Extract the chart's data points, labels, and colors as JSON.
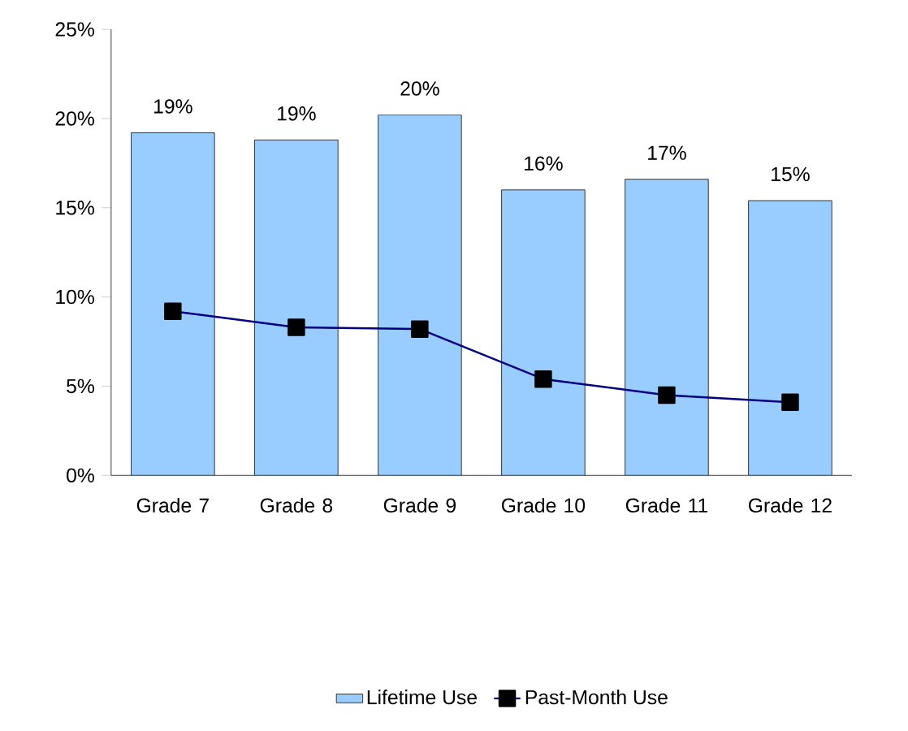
{
  "chart_data": {
    "type": "bar",
    "categories": [
      "Grade 7",
      "Grade 8",
      "Grade 9",
      "Grade 10",
      "Grade 11",
      "Grade 12"
    ],
    "series": [
      {
        "name": "Lifetime Use",
        "color": "#99ccff",
        "values": [
          19.2,
          18.8,
          20.2,
          16.0,
          16.6,
          15.4
        ],
        "value_labels": [
          "19%",
          "19%",
          "20%",
          "16%",
          "17%",
          "15%"
        ]
      },
      {
        "name": "Past-Month Use",
        "type": "line",
        "color": "#000080",
        "marker": "square",
        "line_style": "solid",
        "values": [
          9.2,
          8.3,
          8.2,
          5.4,
          4.5,
          4.1
        ]
      }
    ],
    "ylim": [
      0,
      25
    ],
    "yticks": [
      {
        "value": 0,
        "label": "0%"
      },
      {
        "value": 5,
        "label": "5%"
      },
      {
        "value": 10,
        "label": "10%"
      },
      {
        "value": 15,
        "label": "15%"
      },
      {
        "value": 20,
        "label": "20%"
      },
      {
        "value": 25,
        "label": "25%"
      }
    ],
    "grid": false,
    "legend": "bottom"
  }
}
